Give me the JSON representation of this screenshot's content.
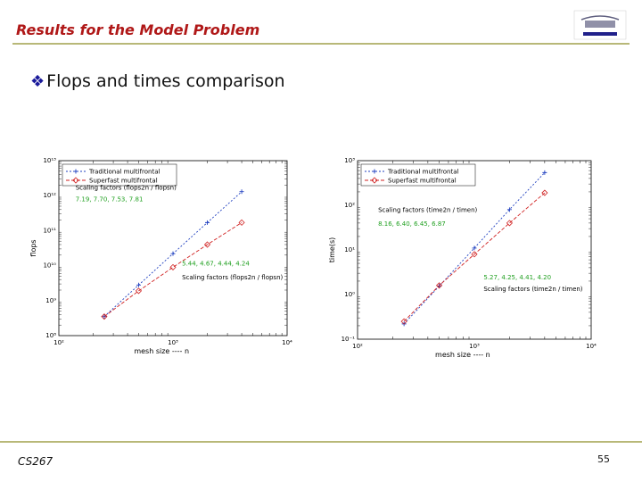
{
  "slide": {
    "title": "Results for the Model Problem",
    "bullet": "Flops and times comparison",
    "course": "CS267",
    "page_number": "55"
  },
  "colors": {
    "title": "#b01818",
    "rule": "#b8b878",
    "bullet": "#1a1a9a",
    "traditional": "#2040c0",
    "superfast": "#d02020",
    "annotation_green": "#20a020"
  },
  "chart_data": [
    {
      "type": "line",
      "log_x": true,
      "log_y": true,
      "xlabel": "mesh size ---- n",
      "ylabel": "flops",
      "xlim": [
        100,
        10000
      ],
      "ylim": [
        100000000.0,
        10000000000000.0
      ],
      "x_tick_labels": [
        "10²",
        "10³",
        "10⁴"
      ],
      "y_tick_labels": [
        "10⁸",
        "10⁹",
        "10¹⁰",
        "10¹¹",
        "10¹²",
        "10¹³"
      ],
      "legend_position": "top-left",
      "series": [
        {
          "name": "Traditional multifrontal",
          "x": [
            250,
            500,
            1000,
            2000,
            4000
          ],
          "y": [
            350000000.0,
            2800000000.0,
            22000000000.0,
            170000000000.0,
            1300000000000.0
          ]
        },
        {
          "name": "Superfast multifrontal",
          "x": [
            250,
            500,
            1000,
            2000,
            4000
          ],
          "y": [
            350000000.0,
            1900000000.0,
            9000000000.0,
            40000000000.0,
            170000000000.0
          ]
        }
      ],
      "annotations": [
        {
          "text": "Scaling factors (flops2n / flopsn)",
          "x": 140,
          "y": 1500000000000.0
        },
        {
          "text": "7.19, 7.70, 7.53, 7.81",
          "x": 140,
          "y": 700000000000.0
        },
        {
          "text": "5.44, 4.67, 4.44, 4.24",
          "x": 1200,
          "y": 10000000000.0
        },
        {
          "text": "Scaling factors (flops2n / flopsn)",
          "x": 1200,
          "y": 4000000000.0
        }
      ]
    },
    {
      "type": "line",
      "log_x": true,
      "log_y": true,
      "xlabel": "mesh size ---- n",
      "ylabel": "time(s)",
      "xlim": [
        100,
        10000
      ],
      "ylim": [
        0.1,
        1000
      ],
      "x_tick_labels": [
        "10²",
        "10³",
        "10⁴"
      ],
      "y_tick_labels": [
        "10⁻¹",
        "10⁰",
        "10¹",
        "10²",
        "10³"
      ],
      "legend_position": "top-left",
      "series": [
        {
          "name": "Traditional multifrontal",
          "x": [
            250,
            500,
            1000,
            2000,
            4000
          ],
          "y": [
            0.22,
            1.55,
            11,
            80,
            540
          ]
        },
        {
          "name": "Superfast multifrontal",
          "x": [
            250,
            500,
            1000,
            2000,
            4000
          ],
          "y": [
            0.25,
            1.6,
            8,
            40,
            190
          ]
        }
      ],
      "annotations": [
        {
          "text": "Scaling factors (time2n / timen)",
          "x": 150,
          "y": 70
        },
        {
          "text": "8.16, 6.40, 6.45, 6.87",
          "x": 150,
          "y": 35
        },
        {
          "text": "5.27, 4.25, 4.41, 4.20",
          "x": 1200,
          "y": 2.2
        },
        {
          "text": "Scaling factors (time2n / timen)",
          "x": 1200,
          "y": 1.2
        }
      ]
    }
  ]
}
